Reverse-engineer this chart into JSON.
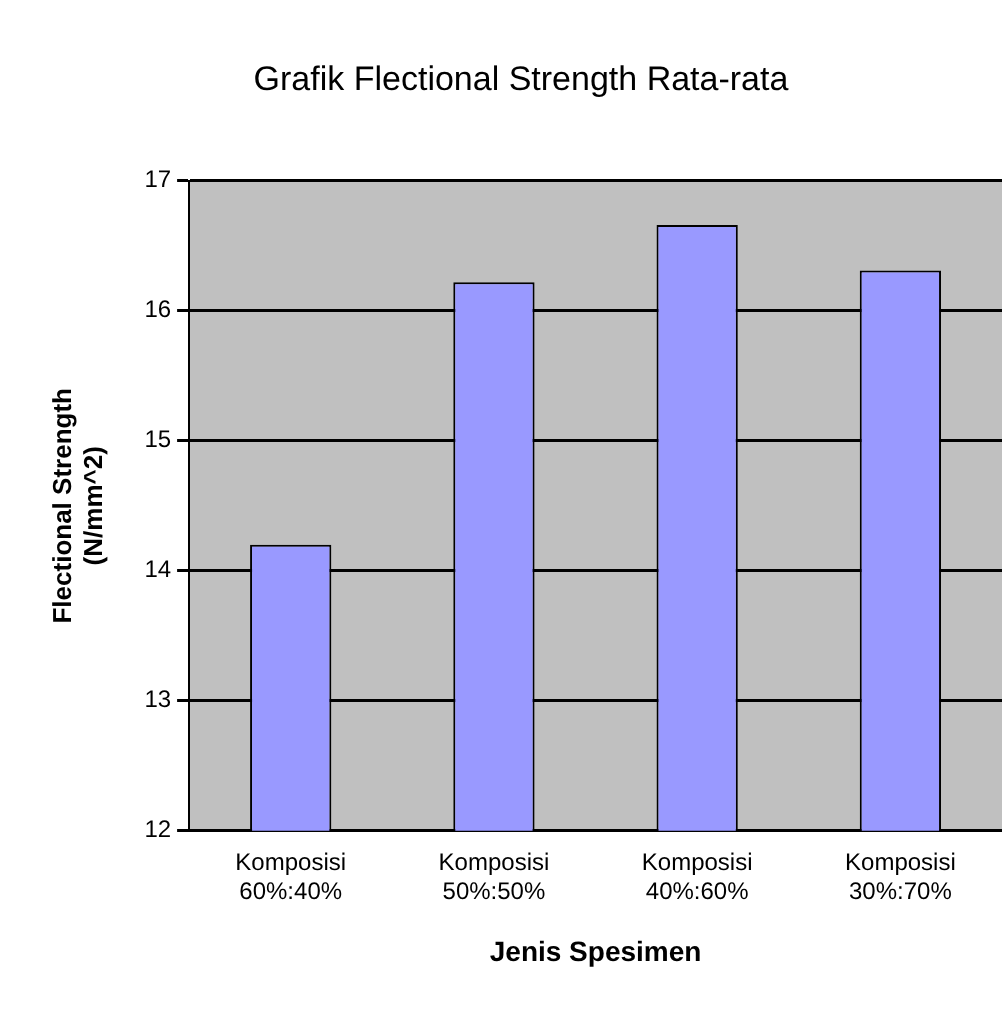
{
  "chart_data": {
    "type": "bar",
    "title": "Grafik Flectional Strength Rata-rata",
    "xlabel": "Jenis Spesimen",
    "ylabel": "Flectional Strength (N/mm^2)",
    "categories": [
      "Komposisi 60%:40%",
      "Komposisi 50%:50%",
      "Komposisi 40%:60%",
      "Komposisi 30%:70%"
    ],
    "values": [
      14.2,
      16.22,
      16.66,
      16.31
    ],
    "color": "#9999ff",
    "ylim": [
      12,
      17
    ],
    "yticks": [
      12,
      13,
      14,
      15,
      16,
      17
    ],
    "grid": "y",
    "legend": false
  }
}
